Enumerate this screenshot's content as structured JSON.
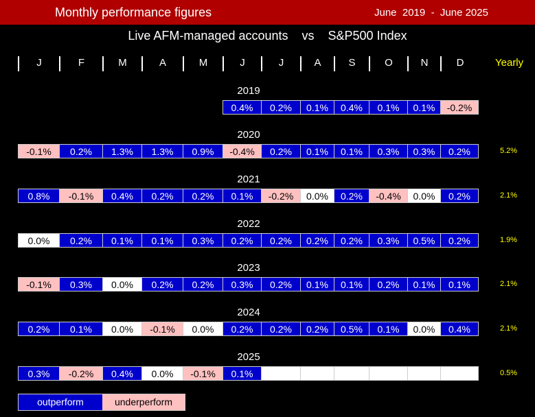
{
  "header": {
    "title": "Monthly performance figures",
    "date_range": "June  2019  -  June 2025",
    "subtitle": "Live AFM-managed accounts    vs    S&P500 Index"
  },
  "months": [
    "J",
    "F",
    "M",
    "A",
    "M",
    "J",
    "J",
    "A",
    "S",
    "O",
    "N",
    "D"
  ],
  "yearly_label": "Yearly",
  "legend": {
    "outperform": "outperform",
    "underperform": "underperform"
  },
  "colors": {
    "outperform": "#0000cc",
    "underperform": "#ffc0c0",
    "neutral": "#ffffff",
    "title_bar": "#b00000",
    "yearly_text": "#ffff00"
  },
  "chart_data": {
    "type": "table",
    "rows": [
      {
        "year": "2019",
        "values": [
          null,
          null,
          null,
          null,
          null,
          "0.4%",
          "0.2%",
          "0.1%",
          "0.4%",
          "0.1%",
          "0.1%",
          "-0.2%"
        ],
        "status": [
          null,
          null,
          null,
          null,
          null,
          "out",
          "out",
          "out",
          "out",
          "out",
          "out",
          "under"
        ],
        "yearly": ""
      },
      {
        "year": "2020",
        "values": [
          "-0.1%",
          "0.2%",
          "1.3%",
          "1.3%",
          "0.9%",
          "-0.4%",
          "0.2%",
          "0.1%",
          "0.1%",
          "0.3%",
          "0.3%",
          "0.2%"
        ],
        "status": [
          "under",
          "out",
          "out",
          "out",
          "out",
          "under",
          "out",
          "out",
          "out",
          "out",
          "out",
          "out"
        ],
        "yearly": "5.2%"
      },
      {
        "year": "2021",
        "values": [
          "0.8%",
          "-0.1%",
          "0.4%",
          "0.2%",
          "0.2%",
          "0.1%",
          "-0.2%",
          "0.0%",
          "0.2%",
          "-0.4%",
          "0.0%",
          "0.2%"
        ],
        "status": [
          "out",
          "under",
          "out",
          "out",
          "out",
          "out",
          "under",
          "zero",
          "out",
          "under",
          "zero",
          "out"
        ],
        "yearly": "2.1%"
      },
      {
        "year": "2022",
        "values": [
          "0.0%",
          "0.2%",
          "0.1%",
          "0.1%",
          "0.3%",
          "0.2%",
          "0.2%",
          "0.2%",
          "0.2%",
          "0.3%",
          "0.5%",
          "0.2%"
        ],
        "status": [
          "zero",
          "out",
          "out",
          "out",
          "out",
          "out",
          "out",
          "out",
          "out",
          "out",
          "out",
          "out"
        ],
        "yearly": "1.9%"
      },
      {
        "year": "2023",
        "values": [
          "-0.1%",
          "0.3%",
          "0.0%",
          "0.2%",
          "0.2%",
          "0.3%",
          "0.2%",
          "0.1%",
          "0.1%",
          "0.2%",
          "0.1%",
          "0.1%"
        ],
        "status": [
          "under",
          "out",
          "zero",
          "out",
          "out",
          "out",
          "out",
          "out",
          "out",
          "out",
          "out",
          "out"
        ],
        "yearly": "2.1%"
      },
      {
        "year": "2024",
        "values": [
          "0.2%",
          "0.1%",
          "0.0%",
          "-0.1%",
          "0.0%",
          "0.2%",
          "0.2%",
          "0.2%",
          "0.5%",
          "0.1%",
          "0.0%",
          "0.4%"
        ],
        "status": [
          "out",
          "out",
          "zero",
          "under",
          "zero",
          "out",
          "out",
          "out",
          "out",
          "out",
          "zero",
          "out"
        ],
        "yearly": "2.1%"
      },
      {
        "year": "2025",
        "values": [
          "0.3%",
          "-0.2%",
          "0.4%",
          "0.0%",
          "-0.1%",
          "0.1%",
          "",
          "",
          "",
          "",
          "",
          ""
        ],
        "status": [
          "out",
          "under",
          "out",
          "zero",
          "under",
          "out",
          "empty",
          "empty",
          "empty",
          "empty",
          "empty",
          "empty"
        ],
        "yearly": "0.5%"
      }
    ]
  }
}
